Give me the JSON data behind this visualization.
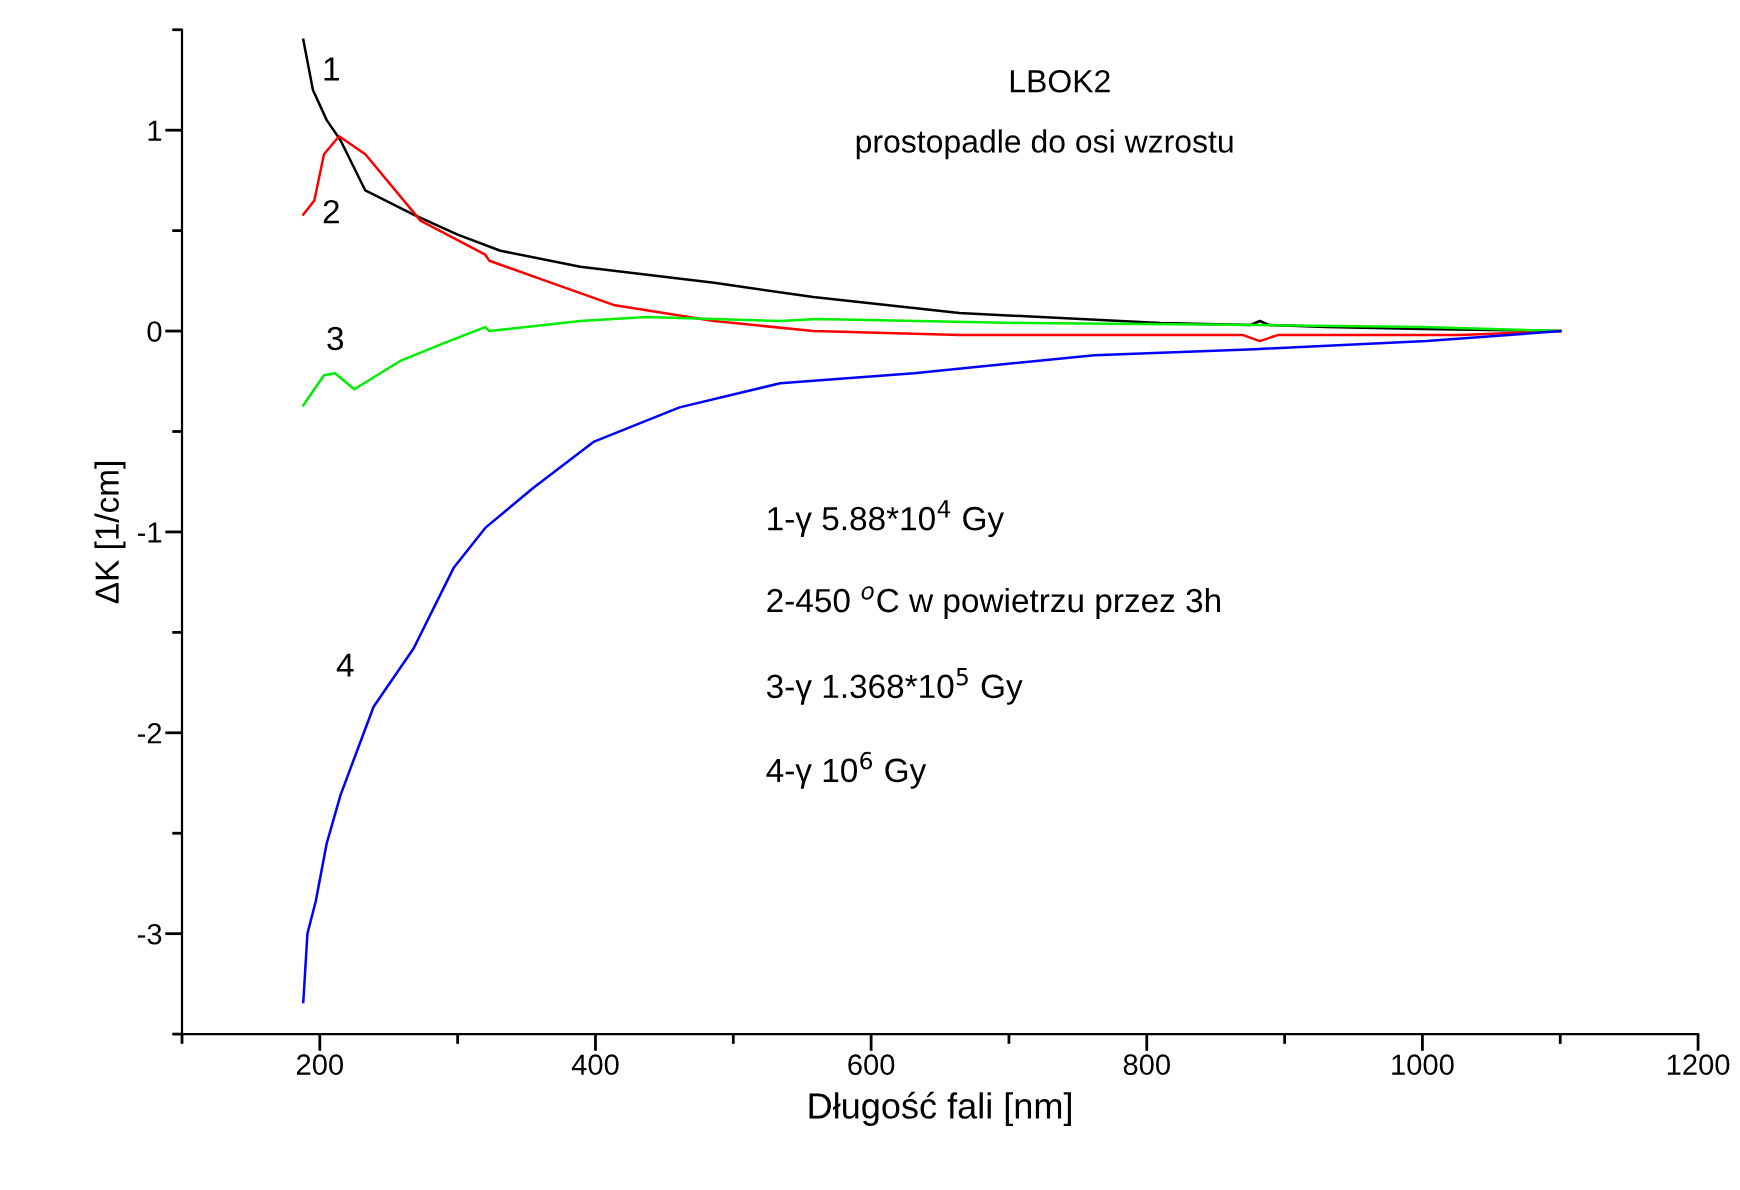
{
  "chart_data": {
    "type": "line",
    "title": "LBOK2",
    "subtitle": "prostopadle do osi wzrostu",
    "xlabel": "Długość fali [nm]",
    "ylabel": "ΔK [1/cm]",
    "xlim": [
      100,
      1200
    ],
    "ylim": [
      -3.5,
      1.5
    ],
    "xticks": [
      {
        "value": 100,
        "label": null
      },
      200,
      {
        "value": 300,
        "label": null
      },
      400,
      {
        "value": 500,
        "label": null
      },
      600,
      {
        "value": 700,
        "label": null
      },
      800,
      {
        "value": 900,
        "label": null
      },
      1000,
      {
        "value": 1100,
        "label": null
      },
      1200
    ],
    "yticks": [
      {
        "value": -3.5,
        "label": null
      },
      -3,
      {
        "value": -2.5,
        "label": null
      },
      -2,
      {
        "value": -1.5,
        "label": null
      },
      -1,
      {
        "value": -0.5,
        "label": null
      },
      0,
      {
        "value": 0.5,
        "label": null
      },
      1,
      {
        "value": 1.5,
        "label": null
      }
    ],
    "grid": false,
    "legend": false,
    "marker": "none",
    "line_style": "solid",
    "series": [
      {
        "name": "1",
        "color": "#000000",
        "x": [
          188,
          195,
          205,
          215,
          233,
          268,
          300,
          331,
          389,
          486,
          558,
          664,
          810,
          875,
          882,
          889,
          930,
          1000,
          1100
        ],
        "values": [
          1.45,
          1.2,
          1.05,
          0.95,
          0.7,
          0.58,
          0.48,
          0.4,
          0.32,
          0.24,
          0.17,
          0.09,
          0.04,
          0.03,
          0.05,
          0.03,
          0.02,
          0.01,
          0.0
        ]
      },
      {
        "name": "2",
        "color": "#ff0000",
        "x": [
          188,
          196,
          203,
          214,
          233,
          273,
          320,
          323,
          364,
          413,
          486,
          558,
          664,
          870,
          882,
          895,
          1027,
          1100
        ],
        "values": [
          0.58,
          0.65,
          0.88,
          0.97,
          0.88,
          0.55,
          0.38,
          0.35,
          0.25,
          0.13,
          0.05,
          0.0,
          -0.02,
          -0.02,
          -0.05,
          -0.02,
          -0.02,
          0.0
        ]
      },
      {
        "name": "3",
        "color": "#00ee00",
        "x": [
          188,
          195,
          203,
          211,
          225,
          258,
          290,
          320,
          323,
          389,
          437,
          534,
          560,
          712,
          882,
          1000,
          1100
        ],
        "values": [
          -0.37,
          -0.3,
          -0.22,
          -0.21,
          -0.29,
          -0.15,
          -0.06,
          0.02,
          0.0,
          0.05,
          0.07,
          0.05,
          0.06,
          0.04,
          0.03,
          0.02,
          0.0
        ]
      },
      {
        "name": "4",
        "color": "#0000ff",
        "x": [
          188,
          191,
          197,
          205,
          215,
          239,
          268,
          297,
          320,
          355,
          399,
          461,
          534,
          631,
          762,
          878,
          1003,
          1100
        ],
        "values": [
          -3.34,
          -3.0,
          -2.84,
          -2.55,
          -2.31,
          -1.87,
          -1.58,
          -1.18,
          -0.98,
          -0.78,
          -0.55,
          -0.38,
          -0.26,
          -0.21,
          -0.12,
          -0.09,
          -0.05,
          0.0
        ]
      }
    ],
    "annotations": [
      "1-γ 5.88*10$^{4}$ Gy",
      "2-450 $^{o}$C w powietrzu przez 3h",
      "3-γ 1.368*10$^{5}$ Gy",
      "4-γ 10$^{6}$ Gy"
    ]
  }
}
